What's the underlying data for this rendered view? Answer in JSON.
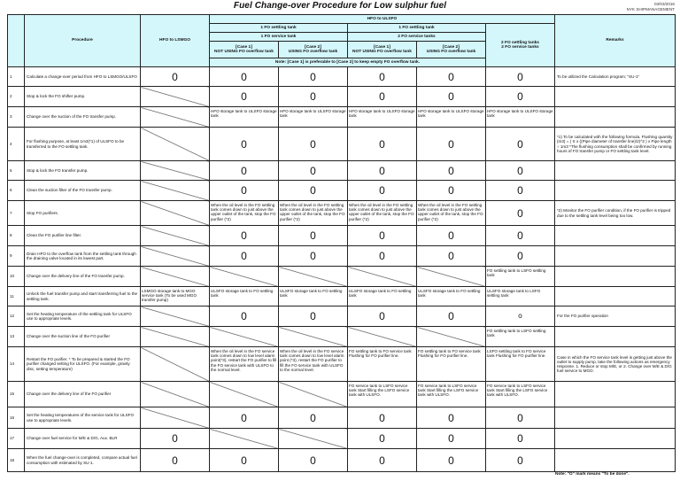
{
  "title": "Fuel Change-over Procedure for Low sulphur fuel",
  "date": "03/03/2016",
  "company": "NYK SHIPMANAGEMENT",
  "header": {
    "procedure": "Procedure",
    "hfo_lsmgo": "HFO to LSMGO",
    "hfo_ulsfo": "HFO to ULSFO",
    "group1_line1": "1 FO settling tank",
    "group1_line2": "1 FO service tank",
    "group2_line1": "1 FO settling tank",
    "group2_line2": "2 FO service tanks",
    "case1": "[Case 1]",
    "case1_sub": "NOT USING FO overflow tank",
    "case2": "[Case 2]",
    "case2_sub": "USING FO overflow tank",
    "two_fo_line1": "2 FO settling tanks",
    "two_fo_line2": "2 FO service tanks",
    "remarks": "Remarks",
    "case_note": "Note: [Case 1] is preferable to [Case 2] to keep empty FO overflow tank."
  },
  "rows": [
    {
      "no": "1",
      "procedure": "Calculate a change-over period from HFO to LSMGO/ULSFO",
      "cells": [
        "0",
        "0",
        "0",
        "0",
        "0",
        "0"
      ],
      "remark": "To be utilized the Calculation program; \"SU-1\""
    },
    {
      "no": "2",
      "procedure": "Stop & lock the FO shifter pump.",
      "cells": [
        "/",
        "0",
        "0",
        "0",
        "0",
        "0"
      ],
      "remark": ""
    },
    {
      "no": "3",
      "procedure": "Change over the suction of the FO transfer pump.",
      "cells": [
        "/",
        "HFO storage tank to ULSFO storage tank",
        "HFO storage tank to ULSFO storage tank",
        "HFO storage tank to ULSFO storage tank",
        "HFO storage tank to ULSFO storage tank",
        "HFO storage tank to ULSFO storage tank"
      ],
      "remark": ""
    },
    {
      "no": "4",
      "procedure": "For flushing purpose, at least 1m3(*1) of ULSFO to be transferred to the FO settling tank.",
      "cells": [
        "/",
        "0",
        "0",
        "0",
        "0",
        "0"
      ],
      "remark": "*1) To be calculated with the following formula. Flushing quantity (m3) = ( π x ((Pipe diameter of transfer line)/2)^2 ) x Pipe length ÷ 1m3 *The flushing consumption shall be confirmed by running hours of FO transfer pump or FO settling tank level."
    },
    {
      "no": "5",
      "procedure": "Stop & lock the FO transfer pump.",
      "cells": [
        "/",
        "0",
        "0",
        "0",
        "0",
        "0"
      ],
      "remark": ""
    },
    {
      "no": "6",
      "procedure": "Clean the suction filter of the FO transfer pump.",
      "cells": [
        "/",
        "0",
        "0",
        "0",
        "0",
        "0"
      ],
      "remark": ""
    },
    {
      "no": "7",
      "procedure": "Stop FO purifiers.",
      "cells": [
        "/",
        "When the oil level in the FO settling tank comes down to just above the upper outlet of the tank, stop the FO purifier (*2)",
        "When the oil level in the FO settling tank comes down to just above the upper outlet of the tank, stop the FO purifier (*2)",
        "When the oil level in the FO settling tank comes down to just above the upper outlet of the tank, stop the FO purifier (*2)",
        "When the oil level in the FO settling tank comes down to just above the upper outlet of the tank, stop the FO purifier (*2)",
        "0"
      ],
      "remark": "*2) Monitor the FO purifier condition, if the FO purifier is tripped due to the settling tank level being too low."
    },
    {
      "no": "8",
      "procedure": "Clean the FO purifier line filter.",
      "cells": [
        "/",
        "0",
        "0",
        "0",
        "0",
        "0"
      ],
      "remark": ""
    },
    {
      "no": "9",
      "procedure": "Drain HFO to the overflow tank from the settling tank through the draining valve located in its lowest part.",
      "cells": [
        "/",
        "0",
        "0",
        "0",
        "0",
        "0"
      ],
      "remark": ""
    },
    {
      "no": "10",
      "procedure": "Change over the delivery line of the FO transfer pump.",
      "cells": [
        "/",
        "/",
        "/",
        "/",
        "/",
        "FO settling tank to LSFO settling tank"
      ],
      "remark": ""
    },
    {
      "no": "11",
      "procedure": "Unlock the fuel transfer pump and start transferring fuel to the settling tank.",
      "cells": [
        "LSMGO storage tank to MGO service tank (To be used MGO transfer pump)",
        "ULSFO storage tank to FO settling tank",
        "ULSFO storage tank to FO settling tank",
        "ULSFO storage tank to FO settling tank",
        "ULSFO storage tank to FO settling tank",
        "ULSFO storage tank to LSFO settling tank"
      ],
      "remark": ""
    },
    {
      "no": "12",
      "procedure": "Set the heating temperature of the settling tank for ULSFO use to appropriate levels.",
      "cells": [
        "/",
        "0",
        "0",
        "0",
        "0",
        "o"
      ],
      "remark": "For the FO purifier operation"
    },
    {
      "no": "13",
      "procedure": "Change over the suction line of the FO purifier",
      "cells": [
        "/",
        "/",
        "/",
        "/",
        "/",
        "FO settling tank to LSFO settling tank"
      ],
      "remark": ""
    },
    {
      "no": "14",
      "procedure": "Restart the FO purifier. * To be prepared & started the FO purifier changed setting for ULSFO. (For example, gravity disc, setting temperature)",
      "cells": [
        "/",
        "When the oil level in the FO service tank comes down to low level alarm point(*3), restart the FO purifier to fill the FO service tank with ULSFO to the normal level.",
        "When the oil level in the FO service tank comes down to low level alarm point (*3), restart the FO purifier to fill the FO service tank with ULSFO to the normal level.",
        "FO settling tank to FO service tank Flushing for FO purifier line.",
        "FO settling tank to FO service tank Flushing for FO purifier line.",
        "LSFO settling tank to FO service tank Flushing for FO purifier line."
      ],
      "remark": "Case in which the FO service tank level is getting just above the outlet to supply pump, take the following actions as emergency response. 1. Reduce or stop M/E, or 2. Change over M/E & D/G fuel service to MGO."
    },
    {
      "no": "15",
      "procedure": "Change over the delivery line of the FO purifier",
      "cells": [
        "/",
        "/",
        "/",
        "FO service tank to LSFO service tank Start filling the LSFO service tank with ULSFO.",
        "FO service tank to LSFO service tank Start filling the LSFO service tank with ULSFO.",
        "FO service tank to LSFO service tank Start filling the LSFO service tank with ULSFO."
      ],
      "remark": ""
    },
    {
      "no": "16",
      "procedure": "Set the heating temperatures of the service tank for ULSFO use to appropriate levels.",
      "cells": [
        "/",
        "0",
        "0",
        "0",
        "0",
        "0"
      ],
      "remark": ""
    },
    {
      "no": "17",
      "procedure": "Change over fuel service for M/E & D/G, Aux. BLR",
      "cells": [
        "0",
        "/",
        "/",
        "0",
        "0",
        "0"
      ],
      "remark": ""
    },
    {
      "no": "18",
      "procedure": "When the fuel change-over is completed, compare actual fuel consumption with estimated by SU-1.",
      "cells": [
        "0",
        "0",
        "0",
        "0",
        "0",
        "0"
      ],
      "remark": ""
    }
  ],
  "footer_note": "Note: \"O\" mark means \"To be done\"."
}
